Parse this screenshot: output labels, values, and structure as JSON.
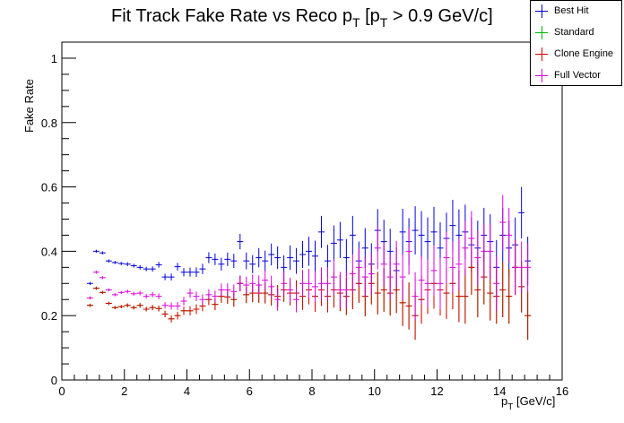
{
  "chart_data": {
    "type": "scatter",
    "title_main": "Fit Track Fake Rate vs Reco p",
    "title_sub1": "T",
    "title_mid": " [p",
    "title_sub2": "T",
    "title_end": " > 0.9 GeV/c]",
    "xlabel_main": "p",
    "xlabel_sub": "T",
    "xlabel_end": " [GeV/c]",
    "ylabel": "Fake Rate",
    "xlim": [
      0,
      16
    ],
    "ylim": [
      0,
      1.05
    ],
    "xticks": [
      0,
      2,
      4,
      6,
      8,
      10,
      12,
      14,
      16
    ],
    "yticks": [
      0,
      0.2,
      0.4,
      0.6,
      0.8,
      1
    ],
    "ytick_labels": [
      "0",
      "0.2",
      "0.4",
      "0.6",
      "0.8",
      "1"
    ],
    "x": [
      0.9,
      1.1,
      1.3,
      1.5,
      1.7,
      1.9,
      2.1,
      2.3,
      2.5,
      2.7,
      2.9,
      3.1,
      3.3,
      3.5,
      3.7,
      3.9,
      4.1,
      4.3,
      4.5,
      4.7,
      4.9,
      5.1,
      5.3,
      5.5,
      5.7,
      5.9,
      6.1,
      6.3,
      6.5,
      6.7,
      6.9,
      7.1,
      7.3,
      7.5,
      7.7,
      7.9,
      8.1,
      8.3,
      8.5,
      8.7,
      8.9,
      9.1,
      9.3,
      9.5,
      9.7,
      9.9,
      10.1,
      10.3,
      10.5,
      10.7,
      10.9,
      11.1,
      11.3,
      11.5,
      11.7,
      11.9,
      12.1,
      12.3,
      12.5,
      12.7,
      12.9,
      13.1,
      13.3,
      13.5,
      13.7,
      13.9,
      14.1,
      14.3,
      14.5,
      14.7,
      14.9
    ],
    "series": [
      {
        "name": "Best Hit",
        "color": "#0000dd",
        "values": [
          0.3,
          0.4,
          0.395,
          0.37,
          0.365,
          0.362,
          0.36,
          0.355,
          0.35,
          0.345,
          0.345,
          0.358,
          0.32,
          0.32,
          0.352,
          0.335,
          0.335,
          0.335,
          0.345,
          0.38,
          0.375,
          0.36,
          0.375,
          0.37,
          0.43,
          0.37,
          0.36,
          0.38,
          0.37,
          0.39,
          0.38,
          0.35,
          0.38,
          0.37,
          0.39,
          0.4,
          0.385,
          0.46,
          0.37,
          0.425,
          0.435,
          0.38,
          0.45,
          0.37,
          0.41,
          0.36,
          0.465,
          0.43,
          0.4,
          0.34,
          0.46,
          0.43,
          0.465,
          0.45,
          0.43,
          0.46,
          0.41,
          0.44,
          0.48,
          0.45,
          0.46,
          0.42,
          0.41,
          0.45,
          0.43,
          0.35,
          0.45,
          0.41,
          0.42,
          0.52,
          0.37
        ],
        "errors": [
          0.005,
          0.005,
          0.005,
          0.005,
          0.005,
          0.005,
          0.006,
          0.006,
          0.007,
          0.007,
          0.008,
          0.009,
          0.01,
          0.011,
          0.012,
          0.013,
          0.014,
          0.015,
          0.016,
          0.017,
          0.018,
          0.02,
          0.021,
          0.022,
          0.024,
          0.026,
          0.028,
          0.03,
          0.032,
          0.034,
          0.035,
          0.037,
          0.038,
          0.04,
          0.042,
          0.045,
          0.048,
          0.05,
          0.05,
          0.055,
          0.056,
          0.058,
          0.06,
          0.06,
          0.062,
          0.065,
          0.066,
          0.068,
          0.07,
          0.072,
          0.072,
          0.073,
          0.075,
          0.075,
          0.075,
          0.078,
          0.08,
          0.08,
          0.08,
          0.08,
          0.085,
          0.085,
          0.085,
          0.085,
          0.085,
          0.085,
          0.085,
          0.085,
          0.085,
          0.08,
          0.075
        ]
      },
      {
        "name": "Standard",
        "color": "#00bb00",
        "values": [
          0.232,
          0.285,
          0.272,
          0.238,
          0.225,
          0.228,
          0.232,
          0.225,
          0.232,
          0.22,
          0.225,
          0.222,
          0.205,
          0.19,
          0.2,
          0.215,
          0.215,
          0.22,
          0.23,
          0.25,
          0.235,
          0.26,
          0.258,
          0.25,
          0.3,
          0.265,
          0.27,
          0.27,
          0.27,
          0.265,
          0.26,
          0.28,
          0.27,
          0.27,
          0.26,
          0.28,
          0.26,
          0.28,
          0.26,
          0.28,
          0.27,
          0.26,
          0.28,
          0.3,
          0.26,
          0.3,
          0.27,
          0.28,
          0.27,
          0.28,
          0.24,
          0.23,
          0.2,
          0.25,
          0.28,
          0.3,
          0.28,
          0.27,
          0.3,
          0.26,
          0.26,
          0.35,
          0.28,
          0.32,
          0.27,
          0.26,
          0.28,
          0.26,
          0.35,
          0.29,
          0.2
        ],
        "errors": [
          0.005,
          0.005,
          0.005,
          0.005,
          0.005,
          0.005,
          0.006,
          0.006,
          0.007,
          0.007,
          0.008,
          0.009,
          0.01,
          0.011,
          0.012,
          0.013,
          0.014,
          0.015,
          0.016,
          0.017,
          0.018,
          0.02,
          0.021,
          0.022,
          0.024,
          0.026,
          0.028,
          0.03,
          0.032,
          0.034,
          0.035,
          0.037,
          0.038,
          0.04,
          0.042,
          0.045,
          0.048,
          0.05,
          0.05,
          0.055,
          0.056,
          0.058,
          0.06,
          0.06,
          0.062,
          0.065,
          0.066,
          0.068,
          0.07,
          0.072,
          0.072,
          0.073,
          0.075,
          0.075,
          0.075,
          0.078,
          0.08,
          0.08,
          0.08,
          0.08,
          0.085,
          0.085,
          0.085,
          0.085,
          0.085,
          0.085,
          0.085,
          0.085,
          0.085,
          0.08,
          0.075
        ]
      },
      {
        "name": "Clone Engine",
        "color": "#dd0000",
        "values": [
          0.232,
          0.285,
          0.272,
          0.238,
          0.225,
          0.228,
          0.232,
          0.225,
          0.232,
          0.22,
          0.225,
          0.222,
          0.205,
          0.19,
          0.2,
          0.215,
          0.215,
          0.22,
          0.23,
          0.25,
          0.235,
          0.26,
          0.258,
          0.25,
          0.3,
          0.265,
          0.27,
          0.27,
          0.27,
          0.265,
          0.26,
          0.28,
          0.27,
          0.27,
          0.26,
          0.28,
          0.26,
          0.28,
          0.26,
          0.28,
          0.27,
          0.26,
          0.28,
          0.3,
          0.26,
          0.3,
          0.27,
          0.28,
          0.27,
          0.28,
          0.24,
          0.23,
          0.2,
          0.25,
          0.28,
          0.3,
          0.28,
          0.27,
          0.3,
          0.26,
          0.26,
          0.35,
          0.28,
          0.32,
          0.27,
          0.26,
          0.28,
          0.26,
          0.35,
          0.29,
          0.2
        ],
        "errors": [
          0.005,
          0.005,
          0.005,
          0.005,
          0.005,
          0.005,
          0.006,
          0.006,
          0.007,
          0.007,
          0.008,
          0.009,
          0.01,
          0.011,
          0.012,
          0.013,
          0.014,
          0.015,
          0.016,
          0.017,
          0.018,
          0.02,
          0.021,
          0.022,
          0.024,
          0.026,
          0.028,
          0.03,
          0.032,
          0.034,
          0.035,
          0.037,
          0.038,
          0.04,
          0.042,
          0.045,
          0.048,
          0.05,
          0.05,
          0.055,
          0.056,
          0.058,
          0.06,
          0.06,
          0.062,
          0.065,
          0.066,
          0.068,
          0.07,
          0.072,
          0.072,
          0.073,
          0.075,
          0.075,
          0.075,
          0.078,
          0.08,
          0.08,
          0.08,
          0.08,
          0.085,
          0.085,
          0.085,
          0.085,
          0.085,
          0.085,
          0.085,
          0.085,
          0.085,
          0.08,
          0.075
        ]
      },
      {
        "name": "Full Vector",
        "color": "#dd00dd",
        "values": [
          0.255,
          0.335,
          0.318,
          0.28,
          0.265,
          0.272,
          0.275,
          0.268,
          0.27,
          0.26,
          0.265,
          0.26,
          0.232,
          0.23,
          0.23,
          0.245,
          0.27,
          0.26,
          0.25,
          0.265,
          0.26,
          0.28,
          0.28,
          0.275,
          0.3,
          0.295,
          0.3,
          0.295,
          0.31,
          0.29,
          0.25,
          0.3,
          0.28,
          0.25,
          0.3,
          0.3,
          0.29,
          0.3,
          0.3,
          0.32,
          0.28,
          0.28,
          0.33,
          0.35,
          0.32,
          0.33,
          0.41,
          0.36,
          0.32,
          0.36,
          0.32,
          0.4,
          0.26,
          0.31,
          0.3,
          0.34,
          0.3,
          0.38,
          0.35,
          0.36,
          0.41,
          0.44,
          0.38,
          0.4,
          0.4,
          0.3,
          0.49,
          0.45,
          0.35,
          0.35,
          0.35
        ],
        "errors": [
          0.005,
          0.005,
          0.005,
          0.005,
          0.005,
          0.005,
          0.006,
          0.006,
          0.007,
          0.007,
          0.008,
          0.009,
          0.01,
          0.011,
          0.012,
          0.013,
          0.014,
          0.015,
          0.016,
          0.017,
          0.018,
          0.02,
          0.021,
          0.022,
          0.024,
          0.026,
          0.028,
          0.03,
          0.032,
          0.034,
          0.035,
          0.037,
          0.038,
          0.04,
          0.042,
          0.045,
          0.048,
          0.05,
          0.05,
          0.055,
          0.056,
          0.058,
          0.06,
          0.06,
          0.062,
          0.065,
          0.066,
          0.068,
          0.07,
          0.072,
          0.072,
          0.073,
          0.075,
          0.075,
          0.075,
          0.078,
          0.08,
          0.08,
          0.08,
          0.08,
          0.085,
          0.085,
          0.085,
          0.085,
          0.085,
          0.085,
          0.085,
          0.085,
          0.085,
          0.08,
          0.075
        ]
      }
    ]
  }
}
